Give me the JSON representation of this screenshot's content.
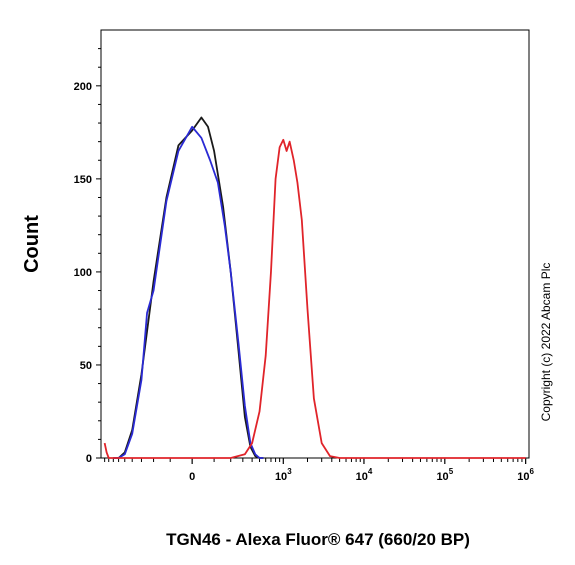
{
  "chart_data": {
    "type": "line",
    "title": "",
    "xlabel": "TGN46 - Alexa Fluor® 647 (660/20 BP)",
    "ylabel": "Count",
    "x_scale": "biexponential",
    "ylim": [
      0,
      230
    ],
    "y_ticks": [
      0,
      50,
      100,
      150,
      200
    ],
    "x_ticks": [
      {
        "value": 0,
        "base": "0",
        "exp": ""
      },
      {
        "value": 1000,
        "base": "10",
        "exp": "3"
      },
      {
        "value": 10000,
        "base": "10",
        "exp": "4"
      },
      {
        "value": 100000,
        "base": "10",
        "exp": "5"
      },
      {
        "value": 1000000,
        "base": "10",
        "exp": "6"
      }
    ],
    "grid": false,
    "legend": "none",
    "series": [
      {
        "color": "#1a1a1a",
        "points": [
          [
            -700,
            0
          ],
          [
            -600,
            0
          ],
          [
            -500,
            3
          ],
          [
            -400,
            15
          ],
          [
            -300,
            45
          ],
          [
            -200,
            95
          ],
          [
            -120,
            140
          ],
          [
            -60,
            168
          ],
          [
            0,
            176
          ],
          [
            40,
            183
          ],
          [
            70,
            178
          ],
          [
            100,
            165
          ],
          [
            150,
            135
          ],
          [
            200,
            100
          ],
          [
            260,
            58
          ],
          [
            320,
            22
          ],
          [
            380,
            6
          ],
          [
            440,
            1
          ],
          [
            500,
            0
          ],
          [
            560,
            0
          ]
        ]
      },
      {
        "color": "#2a2ad4",
        "points": [
          [
            -700,
            0
          ],
          [
            -600,
            0
          ],
          [
            -500,
            2
          ],
          [
            -400,
            13
          ],
          [
            -300,
            42
          ],
          [
            -250,
            78
          ],
          [
            -200,
            90
          ],
          [
            -120,
            138
          ],
          [
            -60,
            165
          ],
          [
            0,
            178
          ],
          [
            40,
            172
          ],
          [
            80,
            160
          ],
          [
            120,
            148
          ],
          [
            160,
            125
          ],
          [
            200,
            100
          ],
          [
            260,
            62
          ],
          [
            320,
            28
          ],
          [
            380,
            8
          ],
          [
            440,
            2
          ],
          [
            500,
            0
          ],
          [
            560,
            0
          ]
        ]
      },
      {
        "color": "#e0242a",
        "points": [
          [
            -900,
            8
          ],
          [
            -850,
            3
          ],
          [
            -800,
            0
          ],
          [
            200,
            0
          ],
          [
            320,
            2
          ],
          [
            400,
            8
          ],
          [
            500,
            25
          ],
          [
            600,
            55
          ],
          [
            700,
            100
          ],
          [
            800,
            150
          ],
          [
            900,
            167
          ],
          [
            1000,
            171
          ],
          [
            1100,
            165
          ],
          [
            1200,
            170
          ],
          [
            1350,
            160
          ],
          [
            1500,
            148
          ],
          [
            1700,
            128
          ],
          [
            2000,
            80
          ],
          [
            2400,
            32
          ],
          [
            3000,
            8
          ],
          [
            3800,
            1
          ],
          [
            5000,
            0
          ],
          [
            10000,
            0
          ],
          [
            100000,
            0
          ],
          [
            1000000,
            0
          ]
        ]
      }
    ]
  },
  "copyright": "Copyright (c) 2022 Abcam Plc"
}
